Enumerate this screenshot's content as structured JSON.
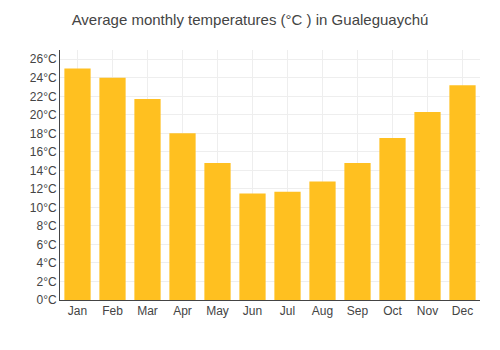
{
  "chart_data": {
    "type": "bar",
    "title": "Average monthly temperatures (°C ) in Gualeguaychú",
    "categories": [
      "Jan",
      "Feb",
      "Mar",
      "Apr",
      "May",
      "Jun",
      "Jul",
      "Aug",
      "Sep",
      "Oct",
      "Nov",
      "Dec"
    ],
    "values": [
      25.0,
      24.0,
      21.7,
      18.0,
      14.8,
      11.5,
      11.7,
      12.8,
      14.8,
      17.5,
      20.3,
      23.2
    ],
    "color": "#FFC020",
    "ylim": [
      0,
      27
    ],
    "yticks": [
      {
        "value": 0,
        "label": "0°C"
      },
      {
        "value": 2,
        "label": "2°C"
      },
      {
        "value": 4,
        "label": "4°C"
      },
      {
        "value": 6,
        "label": "6°C"
      },
      {
        "value": 8,
        "label": "8°C"
      },
      {
        "value": 10,
        "label": "10°C"
      },
      {
        "value": 12,
        "label": "12°C"
      },
      {
        "value": 14,
        "label": "14°C"
      },
      {
        "value": 16,
        "label": "16°C"
      },
      {
        "value": 18,
        "label": "18°C"
      },
      {
        "value": 20,
        "label": "20°C"
      },
      {
        "value": 22,
        "label": "22°C"
      },
      {
        "value": 24,
        "label": "24°C"
      },
      {
        "value": 26,
        "label": "26°C"
      }
    ],
    "grid": true
  }
}
